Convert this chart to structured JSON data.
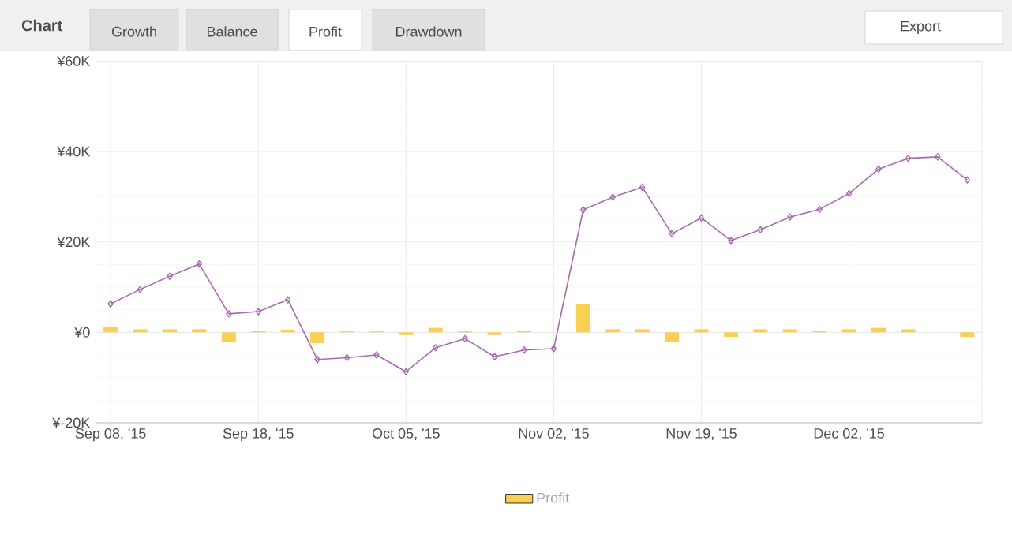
{
  "chart_data": {
    "type": "line",
    "title": "Chart",
    "annotations": [
      "Growth",
      "Balance",
      "Profit",
      "Drawdown",
      "Export"
    ],
    "categories": [
      "Sep 08, '15",
      null,
      null,
      null,
      null,
      "Sep 18, '15",
      null,
      null,
      null,
      null,
      "Oct 05, '15",
      null,
      null,
      null,
      null,
      "Nov 02, '15",
      null,
      null,
      null,
      null,
      "Nov 19, '15",
      null,
      null,
      null,
      null,
      "Dec 02, '15",
      null,
      null,
      null,
      null
    ],
    "series": [
      {
        "name": "Profit",
        "type": "bar",
        "color": "#f9d054",
        "values": [
          1.3,
          0.7,
          0.7,
          0.7,
          -2.1,
          0.3,
          0.6,
          -2.4,
          0.2,
          0.2,
          -0.6,
          1.0,
          0.3,
          -0.6,
          0.3,
          null,
          6.3,
          0.7,
          0.7,
          -2.1,
          0.7,
          -1.0,
          0.7,
          0.7,
          0.3,
          0.7,
          1.0,
          0.7,
          null,
          -1.0
        ]
      },
      {
        "color": "#a66bb1",
        "marker": "diamond",
        "values": [
          6.3,
          9.5,
          12.4,
          15.1,
          4.1,
          4.6,
          7.2,
          -6.0,
          -5.6,
          -5.0,
          -8.7,
          -3.4,
          -1.4,
          -5.4,
          -3.9,
          -3.6,
          27.1,
          29.9,
          32.1,
          21.8,
          25.3,
          20.3,
          22.7,
          25.5,
          27.2,
          30.7,
          36.1,
          38.5,
          38.8,
          33.7
        ]
      }
    ],
    "ylim": [
      -20,
      60
    ],
    "yticks": [
      {
        "value": -20,
        "label": "¥-20K"
      },
      {
        "value": 0,
        "label": "¥0"
      },
      {
        "value": 20,
        "label": "¥20K"
      },
      {
        "value": 40,
        "label": "¥40K"
      },
      {
        "value": 60,
        "label": "¥60K"
      }
    ],
    "grid": true,
    "legend": "bottom"
  }
}
